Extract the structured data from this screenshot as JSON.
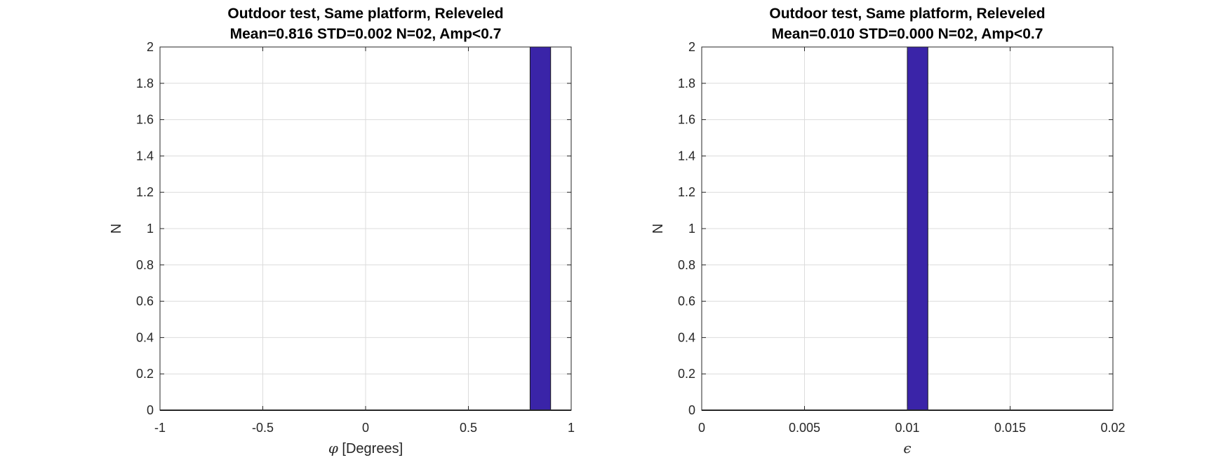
{
  "chart_data": [
    {
      "type": "bar",
      "title": [
        "Outdoor test, Same platform, Releveled",
        "Mean=0.816 STD=0.002 N=02, Amp<0.7"
      ],
      "xlabel_symbol": "φ",
      "xlabel_text": " [Degrees]",
      "ylabel": "N",
      "xlim": [
        -1,
        1
      ],
      "ylim": [
        0,
        2
      ],
      "xticks": [
        -1,
        -0.5,
        0,
        0.5,
        1
      ],
      "xtick_labels": [
        "-1",
        "-0.5",
        "0",
        "0.5",
        "1"
      ],
      "yticks": [
        0,
        0.2,
        0.4,
        0.6,
        0.8,
        1,
        1.2,
        1.4,
        1.6,
        1.8,
        2
      ],
      "ytick_labels": [
        "0",
        "0.2",
        "0.4",
        "0.6",
        "0.8",
        "1",
        "1.2",
        "1.4",
        "1.6",
        "1.8",
        "2"
      ],
      "grid": true,
      "bars": [
        {
          "x0": 0.8,
          "x1": 0.9,
          "value": 2
        }
      ],
      "bar_color": "#3A24A8"
    },
    {
      "type": "bar",
      "title": [
        "Outdoor test, Same platform, Releveled",
        "Mean=0.010 STD=0.000 N=02, Amp<0.7"
      ],
      "xlabel_symbol": "ϵ",
      "xlabel_text": "",
      "ylabel": "N",
      "xlim": [
        0,
        0.02
      ],
      "ylim": [
        0,
        2
      ],
      "xticks": [
        0,
        0.005,
        0.01,
        0.015,
        0.02
      ],
      "xtick_labels": [
        "0",
        "0.005",
        "0.01",
        "0.015",
        "0.02"
      ],
      "yticks": [
        0,
        0.2,
        0.4,
        0.6,
        0.8,
        1,
        1.2,
        1.4,
        1.6,
        1.8,
        2
      ],
      "ytick_labels": [
        "0",
        "0.2",
        "0.4",
        "0.6",
        "0.8",
        "1",
        "1.2",
        "1.4",
        "1.6",
        "1.8",
        "2"
      ],
      "grid": true,
      "bars": [
        {
          "x0": 0.01,
          "x1": 0.011,
          "value": 2
        }
      ],
      "bar_color": "#3A24A8"
    }
  ]
}
